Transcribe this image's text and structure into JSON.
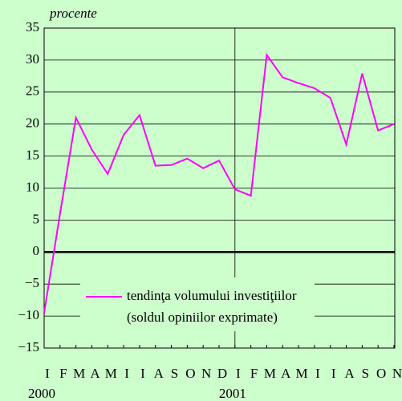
{
  "chart_data": {
    "type": "line",
    "y_label": "procente",
    "categories": [
      "I",
      "F",
      "M",
      "A",
      "M",
      "I",
      "I",
      "A",
      "S",
      "O",
      "N",
      "D",
      "I",
      "F",
      "M",
      "A",
      "M",
      "I",
      "I",
      "A",
      "S",
      "O",
      "N"
    ],
    "years": [
      "2000",
      "2001"
    ],
    "series": [
      {
        "name": "tendinţa volumului investiţiilor",
        "color": "#ff00ff",
        "values": [
          -9.5,
          6,
          21,
          16,
          12.2,
          18.3,
          21.4,
          13.5,
          13.6,
          14.6,
          13.1,
          14.3,
          9.8,
          8.8,
          30.8,
          27.3,
          26.4,
          25.6,
          24.1,
          16.8,
          27.9,
          19,
          20
        ]
      }
    ],
    "legend_note": "(soldul opiniilor exprimate)",
    "ylim": [
      -15,
      35
    ],
    "yticks": [
      {
        "value": -15,
        "label": "−15"
      },
      {
        "value": -10,
        "label": "−10"
      },
      {
        "value": -5,
        "label": "−5"
      },
      0,
      5,
      10,
      15,
      20,
      25,
      30,
      35
    ],
    "grid": true
  }
}
